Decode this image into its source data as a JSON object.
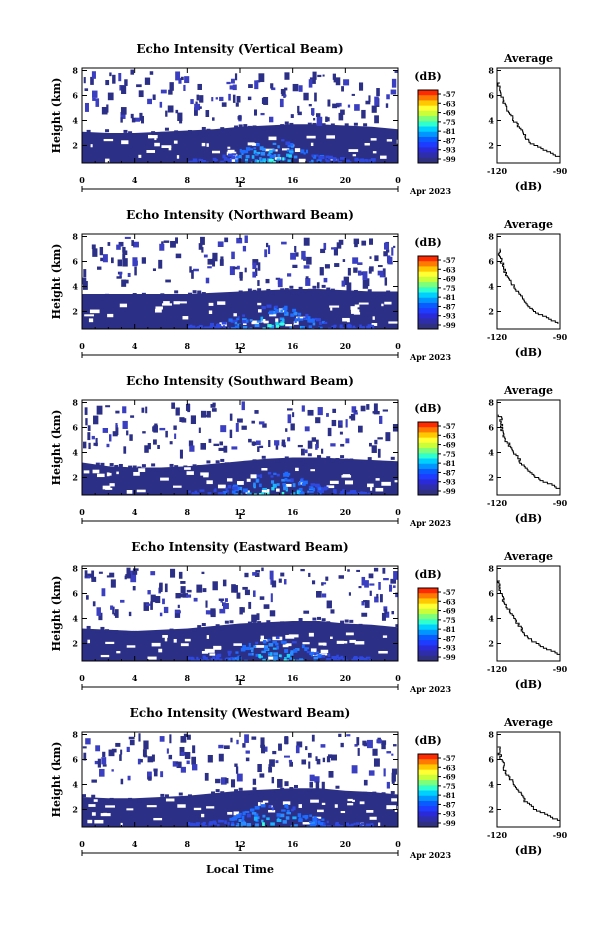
{
  "xlabel": "Local Time",
  "date_label": "Apr 2023",
  "day_label": "1",
  "x_tick_labels": [
    "0",
    "4",
    "8",
    "12",
    "16",
    "20",
    "0"
  ],
  "y_tick_labels": [
    "2",
    "4",
    "6",
    "8"
  ],
  "ylabel": "Height (km)",
  "colorbar_unit": "(dB)",
  "colorbar_labels": [
    "-57",
    "-63",
    "-69",
    "-75",
    "-81",
    "-87",
    "-93",
    "-99"
  ],
  "colorbar_colors": [
    "#ff2a00",
    "#ff7a00",
    "#ffc800",
    "#ffff33",
    "#c8ff3a",
    "#7dff7a",
    "#2fffcf",
    "#00d0ff",
    "#0096ff",
    "#0a5aff",
    "#1e3cff",
    "#2a2ad8",
    "#2e2eaa",
    "#303080"
  ],
  "avg_title": "Average",
  "avg_xlabel": "(dB)",
  "avg_tick_labels": [
    "-120",
    "-90"
  ],
  "panels": [
    {
      "title": "Echo Intensity (Vertical Beam)"
    },
    {
      "title": "Echo Intensity (Northward Beam)"
    },
    {
      "title": "Echo Intensity (Southward Beam)"
    },
    {
      "title": "Echo Intensity (Eastward Beam)"
    },
    {
      "title": "Echo Intensity (Westward Beam)"
    }
  ],
  "chart_data": [
    {
      "type": "heatmap",
      "title": "Echo Intensity (Vertical Beam)",
      "xlabel": "",
      "ylabel": "Height (km)",
      "x_ticks": [
        0,
        4,
        8,
        12,
        16,
        20,
        24
      ],
      "xlim": [
        0,
        24
      ],
      "ylim": [
        0.6,
        8.2
      ],
      "y_ticks": [
        2,
        4,
        6,
        8
      ],
      "colorbar": {
        "unit": "(dB)",
        "ticks": [
          -57,
          -63,
          -69,
          -75,
          -81,
          -87,
          -93,
          -99
        ]
      },
      "echo_top_km": [
        3.1,
        3.0,
        3.0,
        3.1,
        3.2,
        3.3,
        3.5,
        3.6,
        3.7,
        3.7,
        3.6,
        3.5,
        3.3
      ],
      "average_profile": {
        "title": "Average",
        "xlabel": "(dB)",
        "xlim": [
          -120,
          -90
        ],
        "ylim": [
          0.6,
          8.2
        ],
        "x_ticks": [
          -120,
          -90
        ],
        "y_ticks": [
          2,
          4,
          6,
          8
        ],
        "height_km": [
          1.0,
          1.5,
          2.0,
          2.5,
          3.0,
          3.5,
          4.0,
          4.5,
          5.0,
          5.5,
          6.0,
          6.5,
          7.0
        ],
        "db": [
          -90,
          -96,
          -103,
          -106,
          -108,
          -110,
          -112,
          -114,
          -116,
          -117,
          -118,
          -119,
          -119
        ]
      }
    },
    {
      "type": "heatmap",
      "title": "Echo Intensity (Northward Beam)",
      "xlabel": "",
      "ylabel": "Height (km)",
      "x_ticks": [
        0,
        4,
        8,
        12,
        16,
        20,
        24
      ],
      "xlim": [
        0,
        24
      ],
      "ylim": [
        0.6,
        8.2
      ],
      "y_ticks": [
        2,
        4,
        6,
        8
      ],
      "colorbar": {
        "unit": "(dB)",
        "ticks": [
          -57,
          -63,
          -69,
          -75,
          -81,
          -87,
          -93,
          -99
        ]
      },
      "echo_top_km": [
        3.4,
        3.4,
        3.4,
        3.4,
        3.4,
        3.5,
        3.6,
        3.7,
        3.8,
        3.8,
        3.7,
        3.6,
        3.6
      ],
      "average_profile": {
        "title": "Average",
        "xlabel": "(dB)",
        "xlim": [
          -120,
          -90
        ],
        "ylim": [
          0.6,
          8.2
        ],
        "x_ticks": [
          -120,
          -90
        ],
        "y_ticks": [
          2,
          4,
          6,
          8
        ],
        "height_km": [
          1.0,
          1.5,
          2.0,
          2.5,
          3.0,
          3.5,
          4.0,
          4.5,
          5.0,
          5.5,
          6.0,
          6.5,
          7.0
        ],
        "db": [
          -91,
          -97,
          -103,
          -106,
          -108,
          -110,
          -112,
          -114,
          -116,
          -117,
          -118,
          -119,
          -119
        ]
      }
    },
    {
      "type": "heatmap",
      "title": "Echo Intensity (Southward Beam)",
      "xlabel": "",
      "ylabel": "Height (km)",
      "x_ticks": [
        0,
        4,
        8,
        12,
        16,
        20,
        24
      ],
      "xlim": [
        0,
        24
      ],
      "ylim": [
        0.6,
        8.2
      ],
      "y_ticks": [
        2,
        4,
        6,
        8
      ],
      "colorbar": {
        "unit": "(dB)",
        "ticks": [
          -57,
          -63,
          -69,
          -75,
          -81,
          -87,
          -93,
          -99
        ]
      },
      "echo_top_km": [
        3.2,
        2.9,
        2.8,
        2.8,
        2.9,
        3.1,
        3.3,
        3.5,
        3.6,
        3.6,
        3.5,
        3.4,
        3.3
      ],
      "average_profile": {
        "title": "Average",
        "xlabel": "(dB)",
        "xlim": [
          -120,
          -90
        ],
        "ylim": [
          0.6,
          8.2
        ],
        "x_ticks": [
          -120,
          -90
        ],
        "y_ticks": [
          2,
          4,
          6,
          8
        ],
        "height_km": [
          1.0,
          1.5,
          2.0,
          2.5,
          3.0,
          3.5,
          4.0,
          4.5,
          5.0,
          5.5,
          6.0,
          6.5,
          7.0
        ],
        "db": [
          -90,
          -96,
          -102,
          -105,
          -108,
          -110,
          -112,
          -114,
          -116,
          -117,
          -118,
          -118,
          -119
        ]
      }
    },
    {
      "type": "heatmap",
      "title": "Echo Intensity (Eastward Beam)",
      "xlabel": "",
      "ylabel": "Height (km)",
      "x_ticks": [
        0,
        4,
        8,
        12,
        16,
        20,
        24
      ],
      "xlim": [
        0,
        24
      ],
      "ylim": [
        0.6,
        8.2
      ],
      "y_ticks": [
        2,
        4,
        6,
        8
      ],
      "colorbar": {
        "unit": "(dB)",
        "ticks": [
          -57,
          -63,
          -69,
          -75,
          -81,
          -87,
          -93,
          -99
        ]
      },
      "echo_top_km": [
        3.2,
        3.1,
        3.0,
        3.1,
        3.2,
        3.4,
        3.6,
        3.7,
        3.8,
        3.8,
        3.6,
        3.5,
        3.3
      ],
      "average_profile": {
        "title": "Average",
        "xlabel": "(dB)",
        "xlim": [
          -120,
          -90
        ],
        "ylim": [
          0.6,
          8.2
        ],
        "x_ticks": [
          -120,
          -90
        ],
        "y_ticks": [
          2,
          4,
          6,
          8
        ],
        "height_km": [
          1.0,
          1.5,
          2.0,
          2.5,
          3.0,
          3.5,
          4.0,
          4.5,
          5.0,
          5.5,
          6.0,
          6.5,
          7.0
        ],
        "db": [
          -90,
          -96,
          -102,
          -106,
          -108,
          -110,
          -112,
          -114,
          -116,
          -117,
          -118,
          -119,
          -119
        ]
      }
    },
    {
      "type": "heatmap",
      "title": "Echo Intensity (Westward Beam)",
      "xlabel": "Local Time",
      "ylabel": "Height (km)",
      "x_ticks": [
        0,
        4,
        8,
        12,
        16,
        20,
        24
      ],
      "xlim": [
        0,
        24
      ],
      "ylim": [
        0.6,
        8.2
      ],
      "y_ticks": [
        2,
        4,
        6,
        8
      ],
      "colorbar": {
        "unit": "(dB)",
        "ticks": [
          -57,
          -63,
          -69,
          -75,
          -81,
          -87,
          -93,
          -99
        ]
      },
      "echo_top_km": [
        3.0,
        2.9,
        2.9,
        3.0,
        3.1,
        3.3,
        3.5,
        3.6,
        3.7,
        3.7,
        3.5,
        3.4,
        3.2
      ],
      "average_profile": {
        "title": "Average",
        "xlabel": "(dB)",
        "xlim": [
          -120,
          -90
        ],
        "ylim": [
          0.6,
          8.2
        ],
        "x_ticks": [
          -120,
          -90
        ],
        "y_ticks": [
          2,
          4,
          6,
          8
        ],
        "height_km": [
          1.0,
          1.5,
          2.0,
          2.5,
          3.0,
          3.5,
          4.0,
          4.5,
          5.0,
          5.5,
          6.0,
          6.5,
          7.0
        ],
        "db": [
          -90,
          -96,
          -102,
          -106,
          -108,
          -110,
          -112,
          -114,
          -116,
          -117,
          -118,
          -119,
          -119
        ]
      }
    }
  ]
}
